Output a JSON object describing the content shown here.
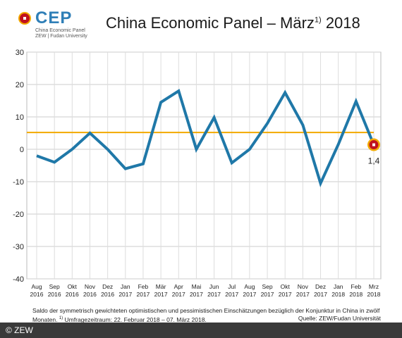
{
  "logo": {
    "word": "CEP",
    "sub1": "China Economic Panel",
    "sub2": "ZEW | Fudan University"
  },
  "title": {
    "text": "China Economic Panel – März",
    "superscript": "1)",
    "year": " 2018"
  },
  "footnote": {
    "line1": "Saldo der symmetrisch gewichteten optimistischen und pessimistischen Einschätzungen bezüglich der Konjunktur in China in zwölf Monaten.",
    "sup": "1)",
    "line2": " Umfragezeitraum: 22. Februar 2018 – 07. März 2018."
  },
  "source": "Quelle: ZEW/Fudan Universität",
  "copyright": "© ZEW",
  "chart_data": {
    "type": "line",
    "categories": [
      [
        "Aug",
        "2016"
      ],
      [
        "Sep",
        "2016"
      ],
      [
        "Okt",
        "2016"
      ],
      [
        "Nov",
        "2016"
      ],
      [
        "Dez",
        "2016"
      ],
      [
        "Jan",
        "2017"
      ],
      [
        "Feb",
        "2017"
      ],
      [
        "Mär",
        "2017"
      ],
      [
        "Apr",
        "2017"
      ],
      [
        "Mai",
        "2017"
      ],
      [
        "Jun",
        "2017"
      ],
      [
        "Jul",
        "2017"
      ],
      [
        "Aug",
        "2017"
      ],
      [
        "Sep",
        "2017"
      ],
      [
        "Okt",
        "2017"
      ],
      [
        "Nov",
        "2017"
      ],
      [
        "Dez",
        "2017"
      ],
      [
        "Jan",
        "2018"
      ],
      [
        "Feb",
        "2018"
      ],
      [
        "Mrz",
        "2018"
      ]
    ],
    "series": [
      {
        "values": [
          -2.0,
          -4.0,
          0.0,
          5.0,
          0.0,
          -6.0,
          -4.5,
          14.5,
          18.0,
          0.0,
          9.8,
          -4.2,
          0.0,
          8.0,
          17.5,
          7.5,
          -10.5,
          1.5,
          14.8,
          1.4
        ],
        "color": "#1f78a8"
      }
    ],
    "reference_line": {
      "value": 5.2,
      "color": "#f2a900"
    },
    "last_value_label": "1,4",
    "yticks": [
      "30",
      "20",
      "10",
      "0",
      "-10",
      "-20",
      "-30",
      "-40"
    ],
    "ylim": [
      -40,
      30
    ],
    "grid": true,
    "marker_color": "#c1121f"
  }
}
